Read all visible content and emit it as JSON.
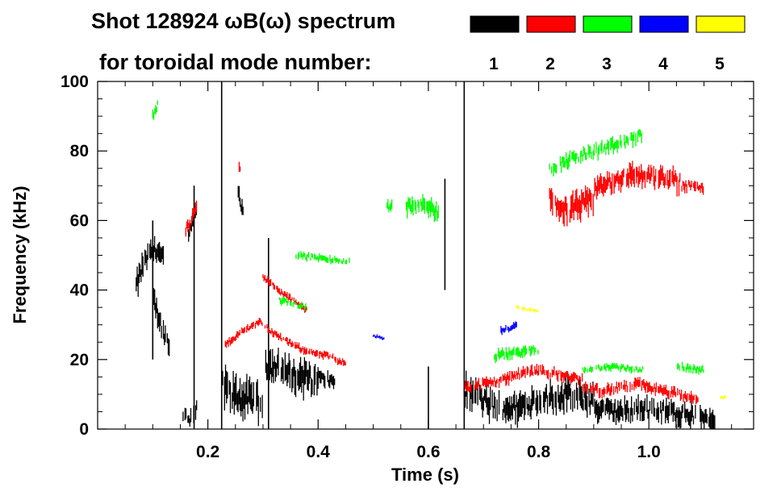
{
  "chart_data": {
    "type": "scatter",
    "title_line1": "Shot 128924 ωB(ω) spectrum",
    "title_line2": "for toroidal mode number:",
    "xlabel": "Time (s)",
    "ylabel": "Frequency (kHz)",
    "xlim": [
      0.0,
      1.19
    ],
    "ylim": [
      0,
      100
    ],
    "x_ticks": [
      {
        "value": 0.2,
        "label": "0.2"
      },
      {
        "value": 0.4,
        "label": "0.4"
      },
      {
        "value": 0.6,
        "label": "0.6"
      },
      {
        "value": 0.8,
        "label": "0.8"
      },
      {
        "value": 1.0,
        "label": "1.0"
      }
    ],
    "y_ticks": [
      {
        "value": 0,
        "label": "0"
      },
      {
        "value": 20,
        "label": "20"
      },
      {
        "value": 40,
        "label": "40"
      },
      {
        "value": 60,
        "label": "60"
      },
      {
        "value": 80,
        "label": "80"
      },
      {
        "value": 100,
        "label": "100"
      }
    ],
    "legend": [
      {
        "n": "1",
        "color": "#000000"
      },
      {
        "n": "2",
        "color": "#ff0000"
      },
      {
        "n": "3",
        "color": "#00ff00"
      },
      {
        "n": "4",
        "color": "#0000ff"
      },
      {
        "n": "5",
        "color": "#ffff00"
      }
    ],
    "series": [
      {
        "name": "n=1",
        "color": "#000000",
        "features": [
          {
            "t0": 0.07,
            "t1": 0.12,
            "f": [
              41,
              47,
              50,
              52,
              48
            ],
            "w": 7
          },
          {
            "t0": 0.1,
            "t1": 0.13,
            "f": [
              38,
              30,
              24
            ],
            "w": 6
          },
          {
            "t0": 0.155,
            "t1": 0.18,
            "f": [
              4,
              3,
              6
            ],
            "w": 5
          },
          {
            "t0": 0.165,
            "t1": 0.18,
            "f": [
              55,
              60,
              62
            ],
            "w": 5
          },
          {
            "t0": 0.225,
            "t1": 0.3,
            "f": [
              12,
              10,
              9,
              8,
              7
            ],
            "w": 10
          },
          {
            "t0": 0.255,
            "t1": 0.265,
            "f": [
              67,
              65,
              63
            ],
            "w": 5
          },
          {
            "t0": 0.305,
            "t1": 0.4,
            "f": [
              19,
              17,
              16,
              15,
              14
            ],
            "w": 9
          },
          {
            "t0": 0.4,
            "t1": 0.43,
            "f": [
              15,
              14,
              14
            ],
            "w": 4
          },
          {
            "t0": 0.665,
            "t1": 0.9,
            "f": [
              11,
              7,
              6,
              9,
              10,
              8
            ],
            "w": 8
          },
          {
            "t0": 0.9,
            "t1": 1.12,
            "f": [
              6,
              5,
              6,
              5,
              4,
              3
            ],
            "w": 6
          }
        ]
      },
      {
        "name": "n=2",
        "color": "#ff0000",
        "features": [
          {
            "t0": 0.16,
            "t1": 0.18,
            "f": [
              57,
              60,
              64
            ],
            "w": 4
          },
          {
            "t0": 0.23,
            "t1": 0.45,
            "f": [
              24,
              28,
              31,
              27,
              24,
              22,
              21,
              19
            ],
            "w": 2
          },
          {
            "t0": 0.3,
            "t1": 0.38,
            "f": [
              44,
              40,
              37,
              34
            ],
            "w": 2
          },
          {
            "t0": 0.665,
            "t1": 0.8,
            "f": [
              12,
              13,
              14,
              16,
              17
            ],
            "w": 3
          },
          {
            "t0": 0.8,
            "t1": 0.88,
            "f": [
              17,
              16,
              15,
              14
            ],
            "w": 3
          },
          {
            "t0": 0.88,
            "t1": 1.09,
            "f": [
              12,
              11,
              12,
              13,
              11,
              10,
              8
            ],
            "w": 3
          },
          {
            "t0": 0.82,
            "t1": 0.9,
            "f": [
              66,
              63,
              64,
              66
            ],
            "w": 7
          },
          {
            "t0": 0.9,
            "t1": 1.06,
            "f": [
              69,
              71,
              73,
              73,
              72,
              71
            ],
            "w": 6
          },
          {
            "t0": 1.06,
            "t1": 1.1,
            "f": [
              70,
              70,
              69
            ],
            "w": 3
          },
          {
            "t0": 0.255,
            "t1": 0.265,
            "f": [
              76,
              75
            ],
            "w": 3
          }
        ]
      },
      {
        "name": "n=3",
        "color": "#00ff00",
        "features": [
          {
            "t0": 0.56,
            "t1": 0.62,
            "f": [
              64,
              65,
              62
            ],
            "w": 5
          },
          {
            "t0": 0.525,
            "t1": 0.535,
            "f": [
              64,
              64
            ],
            "w": 3
          },
          {
            "t0": 0.82,
            "t1": 0.99,
            "f": [
              75,
              78,
              80,
              82,
              85
            ],
            "w": 4
          },
          {
            "t0": 0.72,
            "t1": 0.8,
            "f": [
              21,
              22,
              23
            ],
            "w": 3
          },
          {
            "t0": 0.88,
            "t1": 0.99,
            "f": [
              17,
              18,
              17
            ],
            "w": 2
          },
          {
            "t0": 0.36,
            "t1": 0.46,
            "f": [
              50,
              49,
              48
            ],
            "w": 2
          },
          {
            "t0": 0.33,
            "t1": 0.38,
            "f": [
              37,
              36,
              35
            ],
            "w": 2
          },
          {
            "t0": 0.1,
            "t1": 0.11,
            "f": [
              90,
              94
            ],
            "w": 3
          },
          {
            "t0": 1.05,
            "t1": 1.1,
            "f": [
              18,
              17
            ],
            "w": 2
          }
        ]
      },
      {
        "name": "n=4",
        "color": "#0000ff",
        "features": [
          {
            "t0": 0.73,
            "t1": 0.76,
            "f": [
              28,
              30
            ],
            "w": 2
          },
          {
            "t0": 0.5,
            "t1": 0.52,
            "f": [
              27,
              26
            ],
            "w": 1
          }
        ]
      },
      {
        "name": "n=5",
        "color": "#ffff00",
        "features": [
          {
            "t0": 0.76,
            "t1": 0.8,
            "f": [
              35,
              34
            ],
            "w": 1
          },
          {
            "t0": 1.13,
            "t1": 1.14,
            "f": [
              9,
              9
            ],
            "w": 1
          }
        ]
      }
    ],
    "spikes": [
      {
        "t": 0.225,
        "f0": 0,
        "f1": 100
      },
      {
        "t": 0.31,
        "f0": 0,
        "f1": 55
      },
      {
        "t": 0.665,
        "f0": 0,
        "f1": 100
      },
      {
        "t": 0.6,
        "f0": 0,
        "f1": 18
      },
      {
        "t": 0.175,
        "f0": 0,
        "f1": 70
      },
      {
        "t": 0.1,
        "f0": 20,
        "f1": 60
      },
      {
        "t": 0.63,
        "f0": 40,
        "f1": 72
      }
    ]
  }
}
